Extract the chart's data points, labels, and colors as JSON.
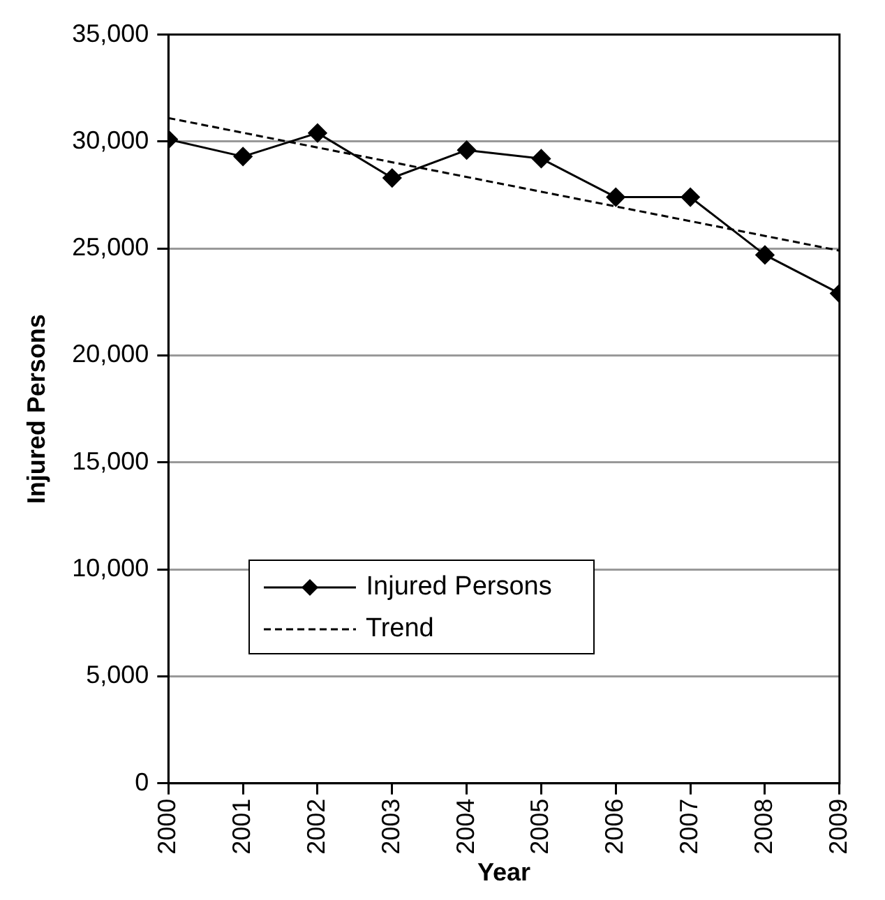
{
  "chart_data": {
    "type": "line",
    "xlabel": "Year",
    "ylabel": "Injured Persons",
    "x": [
      2000,
      2001,
      2002,
      2003,
      2004,
      2005,
      2006,
      2007,
      2008,
      2009
    ],
    "xlim": [
      2000,
      2009
    ],
    "xticks": [
      2000,
      2001,
      2002,
      2003,
      2004,
      2005,
      2006,
      2007,
      2008,
      2009
    ],
    "ylim": [
      0,
      35000
    ],
    "yticks": [
      {
        "value": 0,
        "label": "0"
      },
      {
        "value": 5000,
        "label": "5,000"
      },
      {
        "value": 10000,
        "label": "10,000"
      },
      {
        "value": 15000,
        "label": "15,000"
      },
      {
        "value": 20000,
        "label": "20,000"
      },
      {
        "value": 25000,
        "label": "25,000"
      },
      {
        "value": 30000,
        "label": "30,000"
      },
      {
        "value": 35000,
        "label": "35,000"
      }
    ],
    "grid": "y",
    "legend": "bottom left",
    "series": [
      {
        "name": "Injured Persons",
        "color": "#000000",
        "marker": "diamond",
        "line_style": "solid",
        "values": [
          30100,
          29300,
          30400,
          28300,
          29600,
          29200,
          27400,
          27400,
          24700,
          22900
        ]
      },
      {
        "name": "Trend",
        "type": "line",
        "color": "#000000",
        "marker": "none",
        "line_style": "dashed",
        "x": [
          2000,
          2009
        ],
        "values": [
          31100,
          24900
        ]
      }
    ]
  }
}
